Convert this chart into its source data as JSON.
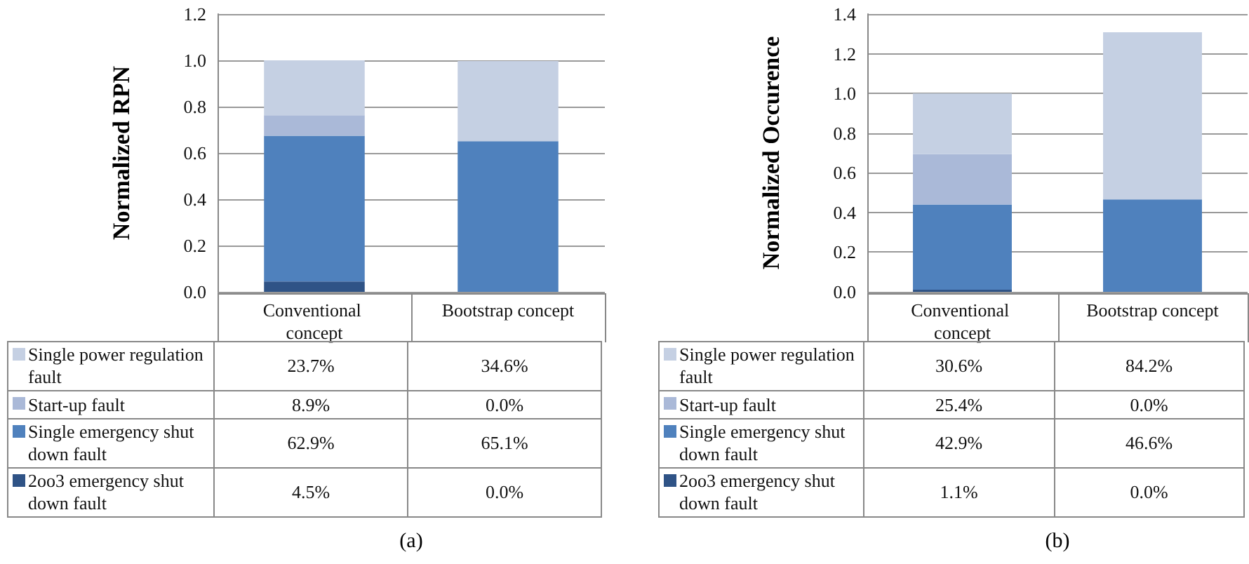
{
  "chart_data": [
    {
      "type": "bar",
      "stacked": true,
      "ylabel": "Normalized RPN",
      "categories": [
        "Conventional concept",
        "Bootstrap concept"
      ],
      "series": [
        {
          "name": "2oo3 emergency shut down fault",
          "color": "#2f5386",
          "values": [
            0.045,
            0.0
          ],
          "value_labels": [
            "4.5%",
            "0.0%"
          ]
        },
        {
          "name": "Single emergency shut down fault",
          "color": "#4f81bd",
          "values": [
            0.629,
            0.651
          ],
          "value_labels": [
            "62.9%",
            "65.1%"
          ]
        },
        {
          "name": "Start-up fault",
          "color": "#aab9d8",
          "values": [
            0.089,
            0.0
          ],
          "value_labels": [
            "8.9%",
            "0.0%"
          ]
        },
        {
          "name": "Single power regulation fault",
          "color": "#c5d0e3",
          "values": [
            0.237,
            0.346
          ],
          "value_labels": [
            "23.7%",
            "34.6%"
          ]
        }
      ],
      "ylim": [
        0,
        1.2
      ],
      "yticks": [
        {
          "value": 0,
          "label": "0.0"
        },
        {
          "value": 0.2,
          "label": "0.2"
        },
        {
          "value": 0.4,
          "label": "0.4"
        },
        {
          "value": 0.6,
          "label": "0.6"
        },
        {
          "value": 0.8,
          "label": "0.8"
        },
        {
          "value": 1,
          "label": "1.0"
        },
        {
          "value": 1.2,
          "label": "1.2"
        }
      ],
      "grid": "y",
      "legend": "bottom left",
      "annotations": [
        "(a)"
      ]
    },
    {
      "type": "bar",
      "stacked": true,
      "ylabel": "Normalized Occurence",
      "categories": [
        "Conventional concept",
        "Bootstrap concept"
      ],
      "series": [
        {
          "name": "2oo3 emergency shut down fault",
          "color": "#2f5386",
          "values": [
            0.011,
            0.0
          ],
          "value_labels": [
            "1.1%",
            "0.0%"
          ]
        },
        {
          "name": "Single emergency shut down fault",
          "color": "#4f81bd",
          "values": [
            0.429,
            0.466
          ],
          "value_labels": [
            "42.9%",
            "46.6%"
          ]
        },
        {
          "name": "Start-up fault",
          "color": "#aab9d8",
          "values": [
            0.254,
            0.0
          ],
          "value_labels": [
            "25.4%",
            "0.0%"
          ]
        },
        {
          "name": "Single power regulation fault",
          "color": "#c5d0e3",
          "values": [
            0.306,
            0.842
          ],
          "value_labels": [
            "30.6%",
            "84.2%"
          ]
        }
      ],
      "ylim": [
        0,
        1.4
      ],
      "yticks": [
        {
          "value": 0,
          "label": "0.0"
        },
        {
          "value": 0.2,
          "label": "0.2"
        },
        {
          "value": 0.4,
          "label": "0.4"
        },
        {
          "value": 0.6,
          "label": "0.6"
        },
        {
          "value": 0.8,
          "label": "0.8"
        },
        {
          "value": 1,
          "label": "1.0"
        },
        {
          "value": 1.2,
          "label": "1.2"
        },
        {
          "value": 1.4,
          "label": "1.4"
        }
      ],
      "grid": "y",
      "legend": "bottom left",
      "annotations": [
        "(b)"
      ]
    }
  ]
}
